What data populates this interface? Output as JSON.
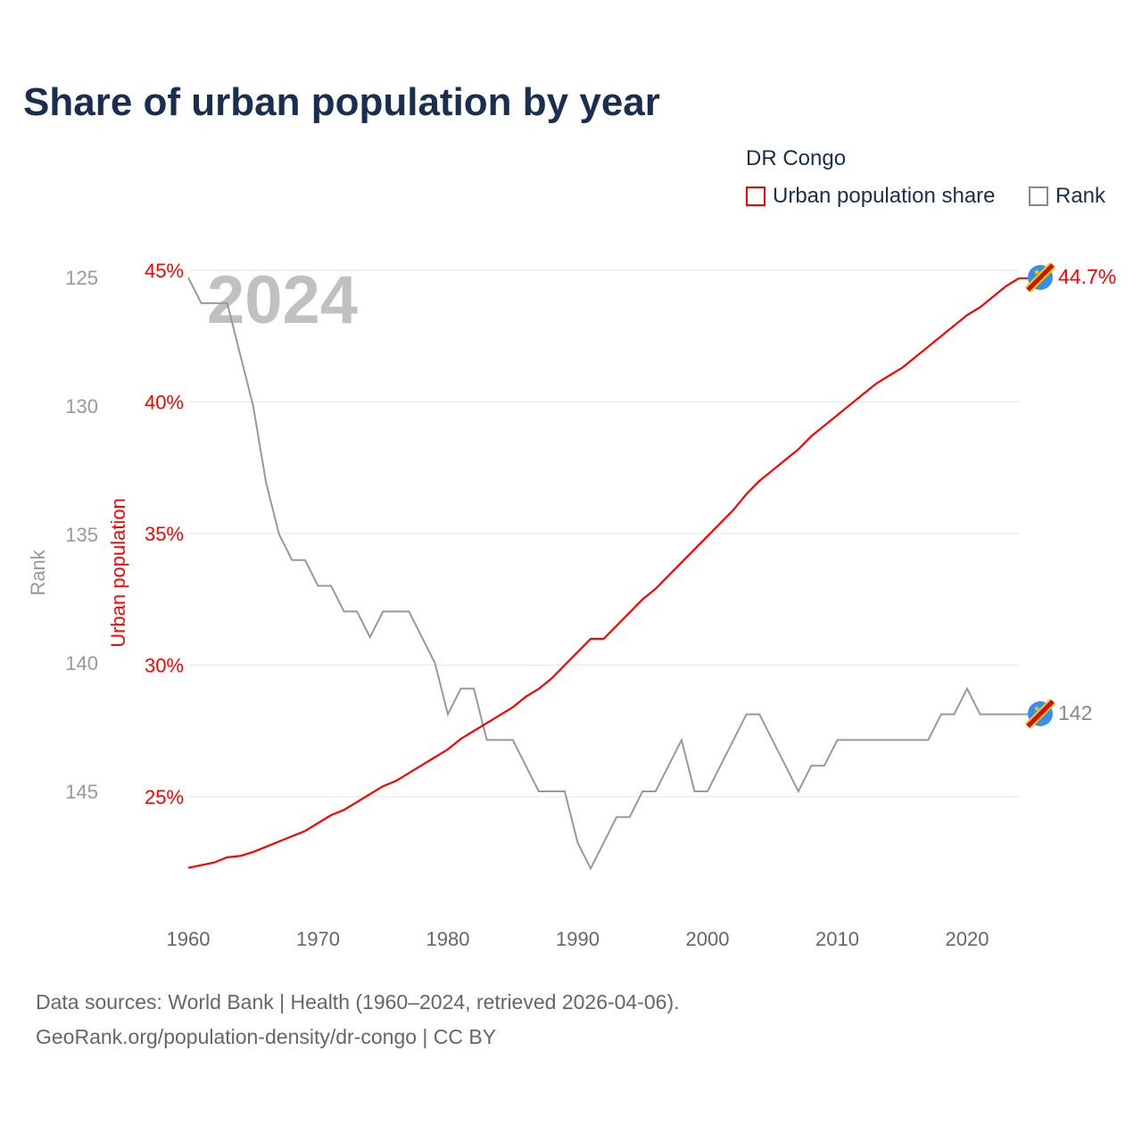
{
  "title": "Share of urban population by year",
  "legend": {
    "title": "DR Congo",
    "items": [
      {
        "label": "Urban population share",
        "color": "#ff0000"
      },
      {
        "label": "Rank",
        "color": "#888888"
      }
    ]
  },
  "source": {
    "line1": "Data sources: World Bank | Health (1960–2024, retrieved 2026-04-06).",
    "line2": "GeoRank.org/population-density/dr-congo | CC BY"
  },
  "chart_data": {
    "type": "line",
    "title": "Share of urban population by year",
    "year_label": "2024",
    "xlabel": "",
    "y_left_label": "Rank",
    "y_right_label": "Urban population",
    "x_ticks": [
      "1960",
      "1970",
      "1980",
      "1990",
      "2000",
      "2010",
      "2020"
    ],
    "rank_ticks": [
      "125",
      "130",
      "135",
      "140",
      "145"
    ],
    "pct_ticks": [
      "45%",
      "40%",
      "35%",
      "30%",
      "25%"
    ],
    "xlim": [
      1960,
      2024
    ],
    "rank_lim": [
      125,
      148
    ],
    "pct_lim": [
      22,
      45
    ],
    "end_labels": {
      "urban": "44.7%",
      "rank": "142"
    },
    "x": [
      1960,
      1961,
      1962,
      1963,
      1964,
      1965,
      1966,
      1967,
      1968,
      1969,
      1970,
      1971,
      1972,
      1973,
      1974,
      1975,
      1976,
      1977,
      1978,
      1979,
      1980,
      1981,
      1982,
      1983,
      1984,
      1985,
      1986,
      1987,
      1988,
      1989,
      1990,
      1991,
      1992,
      1993,
      1994,
      1995,
      1996,
      1997,
      1998,
      1999,
      2000,
      2001,
      2002,
      2003,
      2004,
      2005,
      2006,
      2007,
      2008,
      2009,
      2010,
      2011,
      2012,
      2013,
      2014,
      2015,
      2016,
      2017,
      2018,
      2019,
      2020,
      2021,
      2022,
      2023,
      2024
    ],
    "series": [
      {
        "name": "Urban population share",
        "color": "#ff0000",
        "values": [
          22.3,
          22.4,
          22.5,
          22.7,
          22.75,
          22.9,
          23.1,
          23.3,
          23.5,
          23.7,
          24.0,
          24.3,
          24.5,
          24.8,
          25.1,
          25.4,
          25.6,
          25.9,
          26.2,
          26.5,
          26.8,
          27.2,
          27.5,
          27.8,
          28.1,
          28.4,
          28.8,
          29.1,
          29.5,
          30.0,
          30.5,
          31.0,
          31.0,
          31.5,
          32.0,
          32.5,
          32.9,
          33.4,
          33.9,
          34.4,
          34.9,
          35.4,
          35.9,
          36.5,
          37.0,
          37.4,
          37.8,
          38.2,
          38.7,
          39.1,
          39.5,
          39.9,
          40.3,
          40.7,
          41.0,
          41.3,
          41.7,
          42.1,
          42.5,
          42.9,
          43.3,
          43.6,
          44.0,
          44.4,
          44.7
        ]
      },
      {
        "name": "Rank",
        "color": "#888888",
        "values": [
          125,
          126,
          126,
          126,
          128,
          130,
          133,
          135,
          136,
          136,
          137,
          137,
          138,
          138,
          139,
          138,
          138,
          138,
          139,
          140,
          142,
          141,
          141,
          143,
          143,
          143,
          144,
          145,
          145,
          145,
          147,
          148,
          147,
          146,
          146,
          145,
          145,
          144,
          143,
          145,
          145,
          144,
          143,
          142,
          142,
          143,
          144,
          145,
          144,
          144,
          143,
          143,
          143,
          143,
          143,
          143,
          143,
          143,
          142,
          142,
          141,
          142,
          142,
          142,
          142
        ]
      }
    ]
  }
}
